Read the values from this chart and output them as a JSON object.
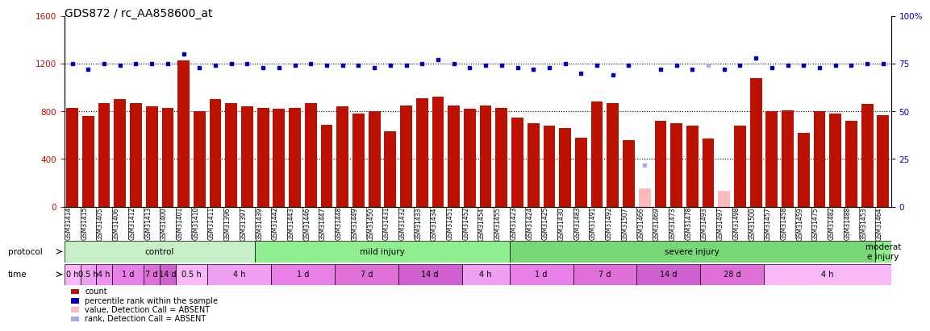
{
  "title": "GDS872 / rc_AA858600_at",
  "samples": [
    "GSM31414",
    "GSM31415",
    "GSM31405",
    "GSM31406",
    "GSM31412",
    "GSM31413",
    "GSM31400",
    "GSM31401",
    "GSM31410",
    "GSM31411",
    "GSM31396",
    "GSM31397",
    "GSM31439",
    "GSM31442",
    "GSM31443",
    "GSM31446",
    "GSM31447",
    "GSM31448",
    "GSM31449",
    "GSM31450",
    "GSM31431",
    "GSM31432",
    "GSM31433",
    "GSM31434",
    "GSM31451",
    "GSM31452",
    "GSM31454",
    "GSM31455",
    "GSM31423",
    "GSM31424",
    "GSM31425",
    "GSM31430",
    "GSM31483",
    "GSM31491",
    "GSM31492",
    "GSM31507",
    "GSM31466",
    "GSM31469",
    "GSM31473",
    "GSM31478",
    "GSM31493",
    "GSM31497",
    "GSM31498",
    "GSM31500",
    "GSM31457",
    "GSM31458",
    "GSM31459",
    "GSM31475",
    "GSM31482",
    "GSM31488",
    "GSM31453",
    "GSM31464"
  ],
  "bar_values": [
    830,
    760,
    870,
    900,
    870,
    840,
    830,
    1230,
    800,
    900,
    870,
    840,
    830,
    820,
    830,
    870,
    690,
    840,
    780,
    800,
    630,
    850,
    910,
    920,
    850,
    820,
    850,
    830,
    750,
    700,
    680,
    660,
    580,
    880,
    870,
    560,
    150,
    720,
    700,
    680,
    570,
    130,
    680,
    1080,
    800,
    810,
    620,
    800,
    780,
    720,
    860,
    770
  ],
  "rank_values": [
    75,
    72,
    75,
    74,
    75,
    75,
    75,
    80,
    73,
    74,
    75,
    75,
    73,
    73,
    74,
    75,
    74,
    74,
    74,
    73,
    74,
    74,
    75,
    77,
    75,
    73,
    74,
    74,
    73,
    72,
    73,
    75,
    70,
    74,
    69,
    74,
    22,
    72,
    74,
    72,
    74,
    72,
    74,
    78,
    73,
    74,
    74,
    73,
    74,
    74,
    75,
    75
  ],
  "absent_bar_indices": [
    36,
    41
  ],
  "absent_rank_indices": [
    36,
    40
  ],
  "protocol_groups": [
    {
      "label": "control",
      "start": 0,
      "end": 12,
      "color": "#c8f0c8"
    },
    {
      "label": "mild injury",
      "start": 12,
      "end": 28,
      "color": "#90ee90"
    },
    {
      "label": "severe injury",
      "start": 28,
      "end": 51,
      "color": "#78d878"
    },
    {
      "label": "moderat\ne injury",
      "start": 51,
      "end": 52,
      "color": "#90ee90"
    }
  ],
  "time_groups": [
    {
      "label": "0 h",
      "start": 0,
      "end": 1,
      "color": "#f8b8f8"
    },
    {
      "label": "0.5 h",
      "start": 1,
      "end": 2,
      "color": "#f0a0f0"
    },
    {
      "label": "4 h",
      "start": 2,
      "end": 3,
      "color": "#ee90ee"
    },
    {
      "label": "1 d",
      "start": 3,
      "end": 5,
      "color": "#e880e8"
    },
    {
      "label": "7 d",
      "start": 5,
      "end": 6,
      "color": "#e070d8"
    },
    {
      "label": "14 d",
      "start": 6,
      "end": 7,
      "color": "#d060d0"
    },
    {
      "label": "0.5 h",
      "start": 7,
      "end": 9,
      "color": "#f8b8f8"
    },
    {
      "label": "4 h",
      "start": 9,
      "end": 13,
      "color": "#f0a0f0"
    },
    {
      "label": "1 d",
      "start": 13,
      "end": 17,
      "color": "#e880e8"
    },
    {
      "label": "7 d",
      "start": 17,
      "end": 21,
      "color": "#e070d8"
    },
    {
      "label": "14 d",
      "start": 21,
      "end": 25,
      "color": "#d060d0"
    },
    {
      "label": "4 h",
      "start": 25,
      "end": 28,
      "color": "#f0a0f0"
    },
    {
      "label": "1 d",
      "start": 28,
      "end": 32,
      "color": "#e880e8"
    },
    {
      "label": "7 d",
      "start": 32,
      "end": 36,
      "color": "#e070d8"
    },
    {
      "label": "14 d",
      "start": 36,
      "end": 40,
      "color": "#d060d0"
    },
    {
      "label": "28 d",
      "start": 40,
      "end": 44,
      "color": "#e070d8"
    },
    {
      "label": "4 h",
      "start": 44,
      "end": 52,
      "color": "#f8b8f8"
    }
  ],
  "ylim": [
    0,
    1600
  ],
  "ylim_right": [
    0,
    100
  ],
  "yticks_left": [
    0,
    400,
    800,
    1200,
    1600
  ],
  "yticks_right": [
    0,
    25,
    50,
    75,
    100
  ],
  "bar_color": "#bb1100",
  "rank_color": "#0000bb",
  "absent_bar_color": "#ffbbbb",
  "absent_rank_color": "#aaaaee",
  "background_color": "#ffffff",
  "title_fontsize": 10,
  "hgrid_values": [
    400,
    800,
    1200
  ]
}
